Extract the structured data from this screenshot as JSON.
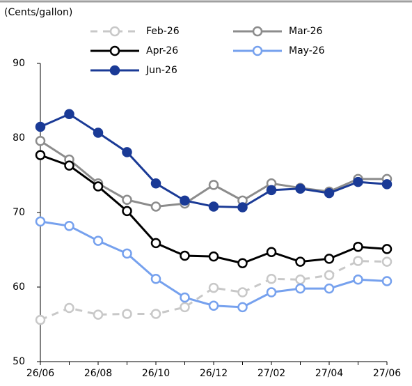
{
  "chart_data": {
    "type": "line",
    "ylabel": "(Cents/gallon)",
    "categories": [
      "26/06",
      null,
      "26/08",
      null,
      "26/10",
      null,
      "26/12",
      null,
      "27/02",
      null,
      "27/04",
      null,
      "27/06"
    ],
    "series": [
      {
        "name": "Feb-26",
        "color": "#c8c8c8",
        "line_style": "dashed",
        "marker": "open",
        "values": [
          55.6,
          57.2,
          56.3,
          56.4,
          56.4,
          57.3,
          59.9,
          59.3,
          61.1,
          61.0,
          61.6,
          63.5,
          63.4
        ]
      },
      {
        "name": "Mar-26",
        "color": "#8c8c8c",
        "line_style": "solid",
        "marker": "open",
        "values": [
          79.6,
          77.1,
          73.9,
          71.7,
          70.8,
          71.2,
          73.7,
          71.6,
          73.9,
          73.3,
          72.8,
          74.5,
          74.5
        ]
      },
      {
        "name": "Apr-26",
        "color": "#000000",
        "line_style": "solid",
        "marker": "open",
        "values": [
          77.7,
          76.3,
          73.5,
          70.2,
          65.9,
          64.2,
          64.1,
          63.2,
          64.7,
          63.4,
          63.8,
          65.4,
          65.1
        ]
      },
      {
        "name": "May-26",
        "color": "#76a1ee",
        "line_style": "solid",
        "marker": "open",
        "values": [
          68.8,
          68.2,
          66.2,
          64.5,
          61.1,
          58.6,
          57.5,
          57.3,
          59.3,
          59.8,
          59.8,
          61.0,
          60.8
        ]
      },
      {
        "name": "Jun-26",
        "color": "#1a3a96",
        "line_style": "solid",
        "marker": "filled",
        "values": [
          81.5,
          83.2,
          80.7,
          78.1,
          73.9,
          71.6,
          70.8,
          70.7,
          73.0,
          73.2,
          72.6,
          74.1,
          73.8
        ]
      }
    ],
    "ylim": [
      50,
      90
    ],
    "yticks": [
      50,
      60,
      70,
      80,
      90
    ],
    "grid": false
  }
}
